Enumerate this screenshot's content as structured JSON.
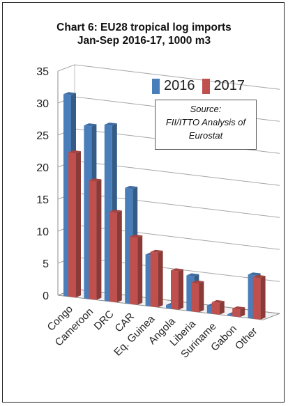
{
  "title_line1": "Chart 6: EU28 tropical log imports",
  "title_line2": "Jan-Sep 2016-17, 1000 m3",
  "source_line1": "Source:",
  "source_line2": "FII/ITTO Analysis of",
  "source_line3": "Eurostat",
  "colors": {
    "2016": "#4a7ebb",
    "2017": "#c0504d"
  },
  "chart_data": {
    "type": "bar",
    "title": "Chart 6: EU28 tropical log imports Jan-Sep 2016-17, 1000 m3",
    "categories": [
      "Congo",
      "Cameroon",
      "DRC",
      "CAR",
      "Eq. Guinea",
      "Angola",
      "Liberia",
      "Suriname",
      "Gabon",
      "Other"
    ],
    "series": [
      {
        "name": "2016",
        "values": [
          31.5,
          27.0,
          27.5,
          18.0,
          8.0,
          0.5,
          5.5,
          1.2,
          0.2,
          6.8
        ]
      },
      {
        "name": "2017",
        "values": [
          22.5,
          18.5,
          14.0,
          10.5,
          8.5,
          6.0,
          4.5,
          1.8,
          1.2,
          6.5
        ]
      }
    ],
    "ylim": [
      0,
      35
    ],
    "yticks": [
      0,
      5,
      10,
      15,
      20,
      25,
      30,
      35
    ],
    "grid": true,
    "style": "3d-clustered-column",
    "legend_position": "top-right"
  }
}
